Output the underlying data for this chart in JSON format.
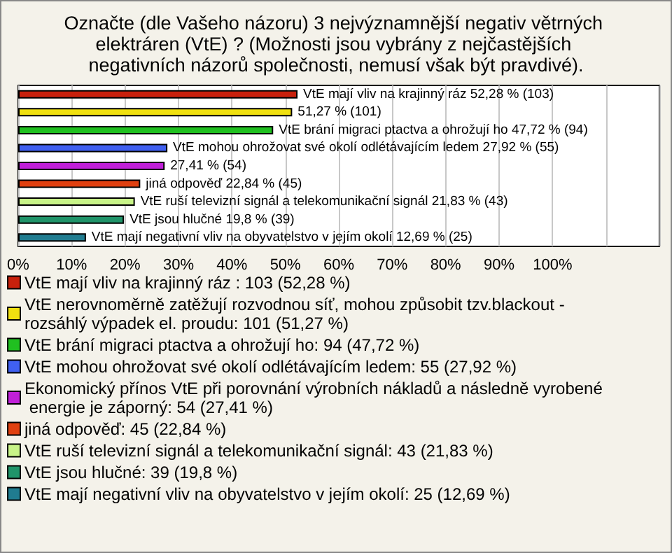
{
  "chart_data": {
    "type": "bar",
    "orientation": "horizontal",
    "title": "Označte (dle Vašeho názoru) 3 nejvýznamnější negativ větrných elektráren (VtE) ? (Možnosti jsou vybrány z nejčastějších negativních názorů společnosti, nemusí však být pravdivé).",
    "categories": [
      null,
      null,
      null,
      null,
      null,
      null,
      null,
      null,
      null
    ],
    "series": [
      {
        "name": "VtE mají vliv na krajinný ráz : 103 (52,28 %)",
        "color": "#c8200c",
        "values": [
          52.28,
          null,
          null,
          null,
          null,
          null,
          null,
          null,
          null
        ],
        "value_labels": [
          "VtE mají vliv na krajinný ráz 52,28 % (103)",
          null,
          null,
          null,
          null,
          null,
          null,
          null,
          null
        ]
      },
      {
        "name": "VtE nerovnoměrně zatěžují rozvodnou síť, mohou způsobit tzv.blackout - rozsáhlý výpadek el. proudu: 101 (51,27 %)",
        "color": "#f0e010",
        "values": [
          null,
          51.27,
          null,
          null,
          null,
          null,
          null,
          null,
          null
        ],
        "value_labels": [
          null,
          "51,27 % (101)",
          null,
          null,
          null,
          null,
          null,
          null,
          null
        ]
      },
      {
        "name": "VtE brání migraci ptactva a ohrožují ho: 94 (47,72 %)",
        "color": "#20c020",
        "values": [
          null,
          null,
          47.72,
          null,
          null,
          null,
          null,
          null,
          null
        ],
        "value_labels": [
          null,
          null,
          "VtE brání migraci ptactva a ohrožují ho 47,72 % (94)",
          null,
          null,
          null,
          null,
          null,
          null
        ]
      },
      {
        "name": "VtE mohou ohrožovat své okolí odlétávajícím ledem: 55 (27,92 %)",
        "color": "#4060f0",
        "values": [
          null,
          null,
          null,
          27.92,
          null,
          null,
          null,
          null,
          null
        ],
        "value_labels": [
          null,
          null,
          null,
          "VtE mohou ohrožovat své okolí odlétávajícím ledem 27,92 % (55)",
          null,
          null,
          null,
          null,
          null
        ]
      },
      {
        "name": "Ekonomický přínos VtE při porovnání výrobních nákladů a následně vyrobené energie je záporný: 54 (27,41 %)",
        "color": "#c020d8",
        "values": [
          null,
          null,
          null,
          null,
          27.41,
          null,
          null,
          null,
          null
        ],
        "value_labels": [
          null,
          null,
          null,
          null,
          "27,41 % (54)",
          null,
          null,
          null,
          null
        ]
      },
      {
        "name": "jiná odpověď: 45 (22,84 %)",
        "color": "#e04010",
        "values": [
          null,
          null,
          null,
          null,
          null,
          22.84,
          null,
          null,
          null
        ],
        "value_labels": [
          null,
          null,
          null,
          null,
          null,
          "jiná odpověď 22,84 % (45)",
          null,
          null,
          null
        ]
      },
      {
        "name": "VtE ruší televizní signál a telekomunikační signál: 43 (21,83 %)",
        "color": "#c8f488",
        "values": [
          null,
          null,
          null,
          null,
          null,
          null,
          21.83,
          null,
          null
        ],
        "value_labels": [
          null,
          null,
          null,
          null,
          null,
          null,
          "VtE ruší televizní signál a telekomunikační signál 21,83 % (43)",
          null,
          null
        ]
      },
      {
        "name": "VtE jsou hlučné: 39 (19,8 %)",
        "color": "#20946a",
        "values": [
          null,
          null,
          null,
          null,
          null,
          null,
          null,
          19.8,
          null
        ],
        "value_labels": [
          null,
          null,
          null,
          null,
          null,
          null,
          null,
          "VtE jsou hlučné 19,8 % (39)",
          null
        ]
      },
      {
        "name": "VtE mají negativní vliv na obyvatelstvo v jejím okolí: 25 (12,69 %)",
        "color": "#207c90",
        "values": [
          null,
          null,
          null,
          null,
          null,
          null,
          null,
          null,
          12.69
        ],
        "value_labels": [
          null,
          null,
          null,
          null,
          null,
          null,
          null,
          null,
          "VtE mají negativní vliv na obyvatelstvo v jejím okolí 12,69 % (25)"
        ]
      }
    ],
    "xlim": [
      0,
      120
    ],
    "xticks": [
      {
        "value": 0,
        "label": "0%"
      },
      {
        "value": 10,
        "label": "10%"
      },
      {
        "value": 20,
        "label": "20%"
      },
      {
        "value": 30,
        "label": "30%"
      },
      {
        "value": 40,
        "label": "40%"
      },
      {
        "value": 50,
        "label": "50%"
      },
      {
        "value": 60,
        "label": "60%"
      },
      {
        "value": 70,
        "label": "70%"
      },
      {
        "value": 80,
        "label": "80%"
      },
      {
        "value": 90,
        "label": "90%"
      },
      {
        "value": 100,
        "label": "100%"
      },
      {
        "value": 110,
        "label": null
      }
    ],
    "tick_labels": "x",
    "grid": "x",
    "legend": "bottom"
  }
}
